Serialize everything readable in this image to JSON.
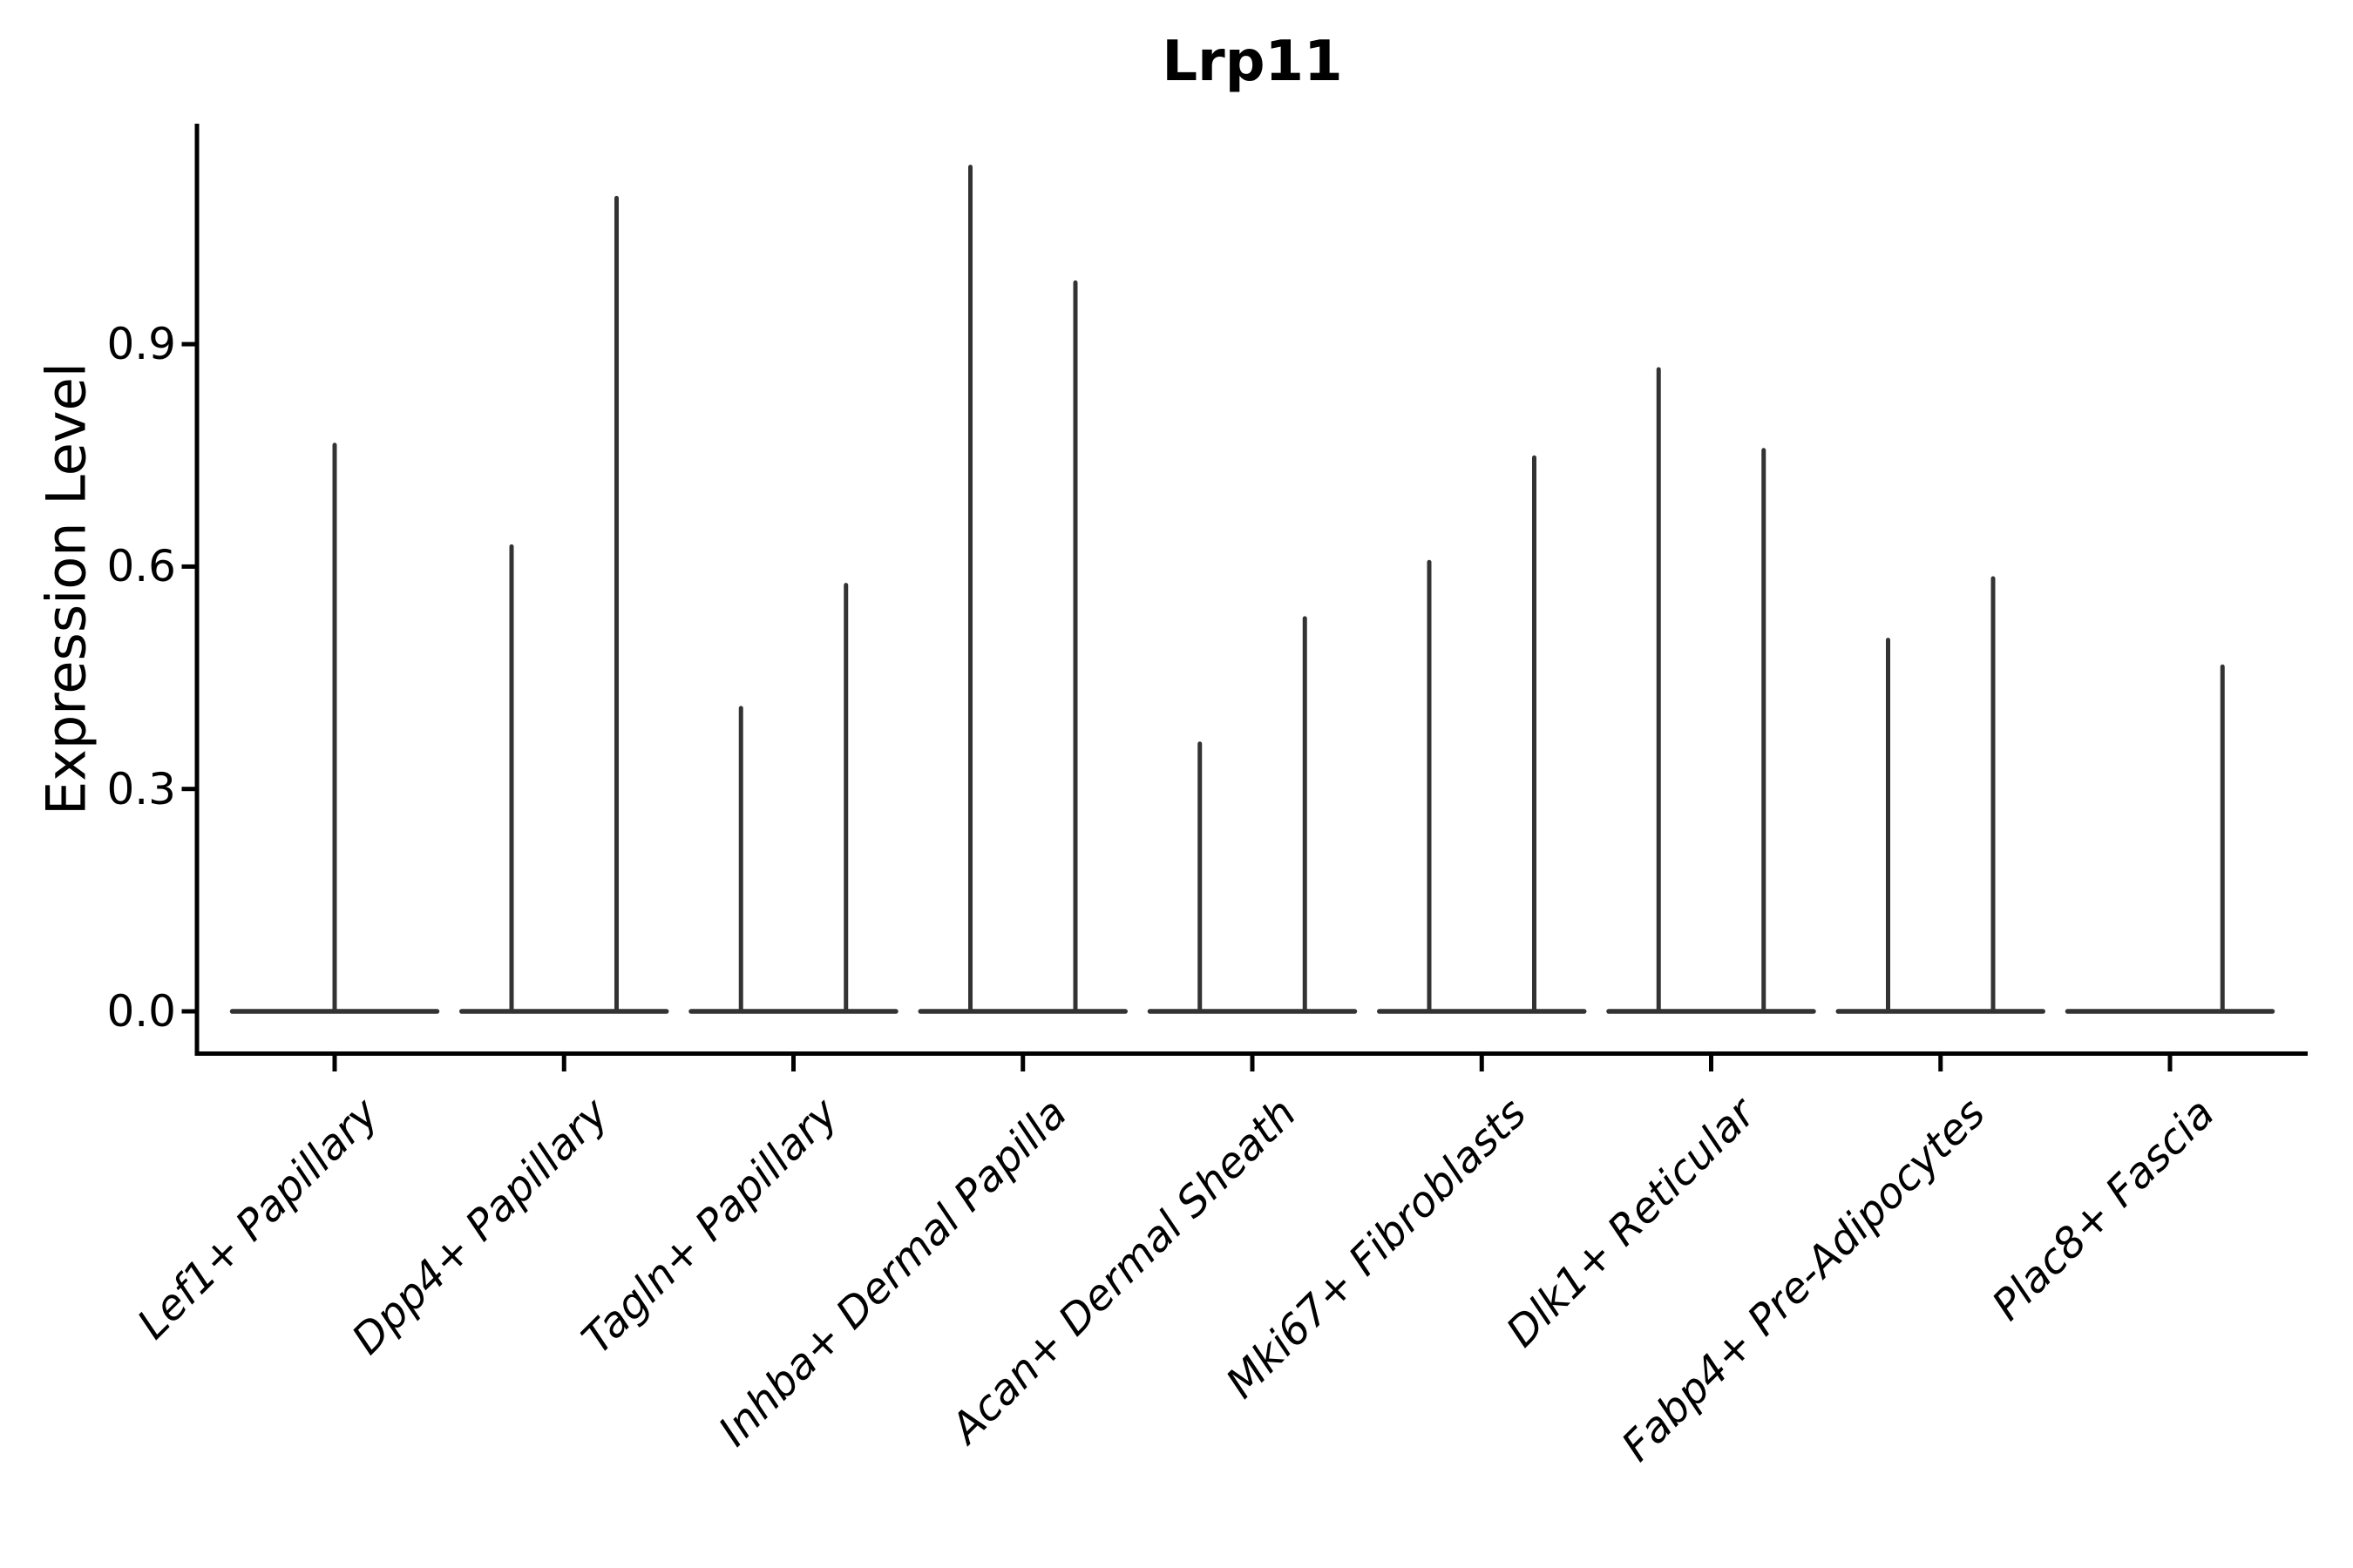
{
  "chart_data": {
    "type": "violin",
    "title": "Lrp11",
    "ylabel": "Expression Level",
    "xlabel": "",
    "ytick_labels": [
      "0.0",
      "0.3",
      "0.6",
      "0.9"
    ],
    "ytick_values": [
      0.0,
      0.3,
      0.6,
      0.9
    ],
    "ylim": [
      -0.06,
      1.2
    ],
    "grid": false,
    "legend": null,
    "xtick_rotation": 45,
    "xtick_italic": true,
    "axis_color": "#000000",
    "violin_color": "#333333",
    "categories": [
      "Lef1+ Papillary",
      "Dpp4+ Papillary",
      "Tagln+ Papillary",
      "Inhba+ Dermal Papilla",
      "Acan+ Dermal Sheath",
      "Mki67+ Fibroblasts",
      "Dlk1+ Reticular",
      "Fabp4+ Pre-Adipocytes",
      "Plac8+ Fascia"
    ],
    "violins": [
      {
        "category": "Lef1+ Papillary",
        "baseline_value": 0.0,
        "spikes": [
          {
            "pos": 0.5,
            "max": 0.767
          }
        ]
      },
      {
        "category": "Dpp4+ Papillary",
        "baseline_value": 0.0,
        "spikes": [
          {
            "pos": 0.25,
            "max": 0.63
          },
          {
            "pos": 0.75,
            "max": 1.1
          }
        ]
      },
      {
        "category": "Tagln+ Papillary",
        "baseline_value": 0.0,
        "spikes": [
          {
            "pos": 0.25,
            "max": 0.412
          },
          {
            "pos": 0.75,
            "max": 0.578
          }
        ]
      },
      {
        "category": "Inhba+ Dermal Papilla",
        "baseline_value": 0.0,
        "spikes": [
          {
            "pos": 0.25,
            "max": 1.142
          },
          {
            "pos": 0.75,
            "max": 0.986
          }
        ]
      },
      {
        "category": "Acan+ Dermal Sheath",
        "baseline_value": 0.0,
        "spikes": [
          {
            "pos": 0.25,
            "max": 0.364
          },
          {
            "pos": 0.75,
            "max": 0.533
          }
        ]
      },
      {
        "category": "Mki67+ Fibroblasts",
        "baseline_value": 0.0,
        "spikes": [
          {
            "pos": 0.25,
            "max": 0.609
          },
          {
            "pos": 0.75,
            "max": 0.75
          }
        ]
      },
      {
        "category": "Dlk1+ Reticular",
        "baseline_value": 0.0,
        "spikes": [
          {
            "pos": 0.25,
            "max": 0.869
          },
          {
            "pos": 0.75,
            "max": 0.76
          }
        ]
      },
      {
        "category": "Fabp4+ Pre-Adipocytes",
        "baseline_value": 0.0,
        "spikes": [
          {
            "pos": 0.25,
            "max": 0.504
          },
          {
            "pos": 0.75,
            "max": 0.587
          }
        ]
      },
      {
        "category": "Plac8+ Fascia",
        "baseline_value": 0.0,
        "spikes": [
          {
            "pos": 0.75,
            "max": 0.468
          }
        ]
      }
    ]
  }
}
